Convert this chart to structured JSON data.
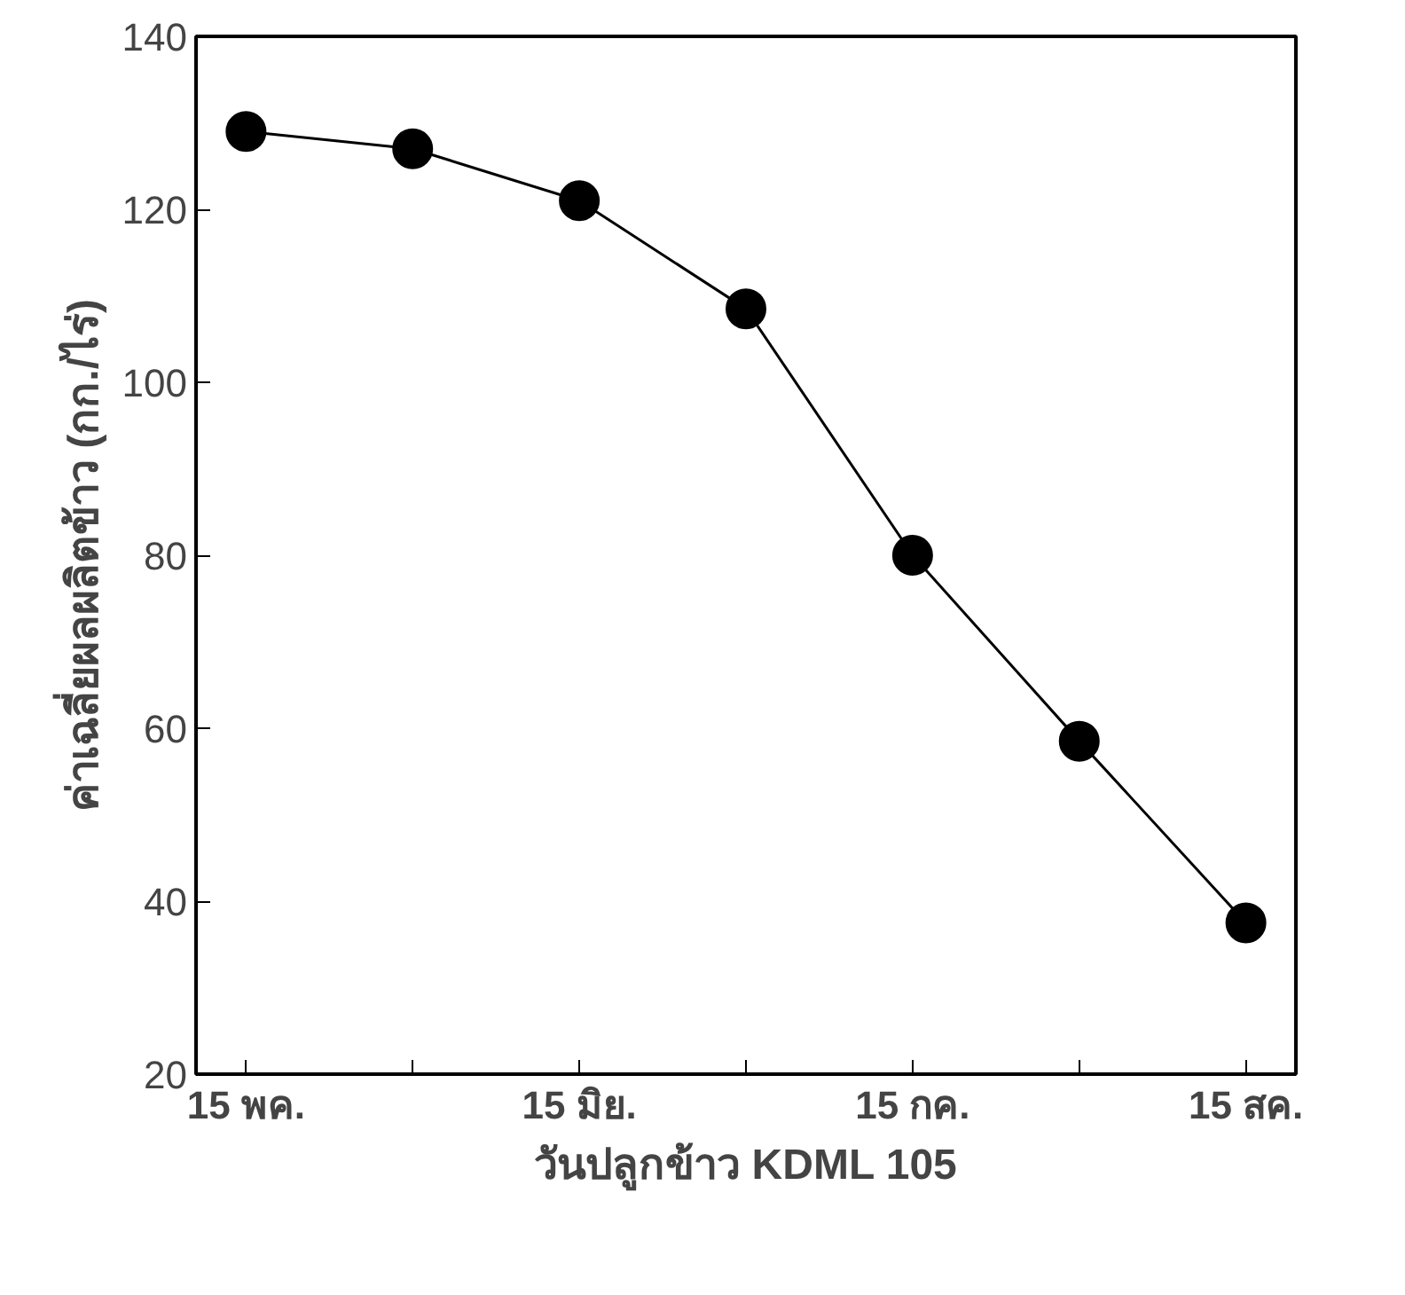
{
  "chart_data": {
    "type": "line",
    "xlabel": "วันปลูกข้าว KDML 105",
    "ylabel": "ค่าเฉลี่ยผลผลิตข้าว (กก./ไร่)",
    "categories": [
      "15 พค.",
      null,
      "15 มิย.",
      null,
      "15 กค.",
      null,
      "15 สค."
    ],
    "series": [
      {
        "color": "#000000",
        "values": [
          129,
          127,
          121,
          108.5,
          80,
          58.5,
          37.5
        ]
      }
    ],
    "ylim": [
      20,
      140
    ],
    "yticks": [
      20,
      40,
      60,
      80,
      100,
      120,
      140
    ],
    "grid": false,
    "marker": "circle",
    "line_style": "solid"
  }
}
